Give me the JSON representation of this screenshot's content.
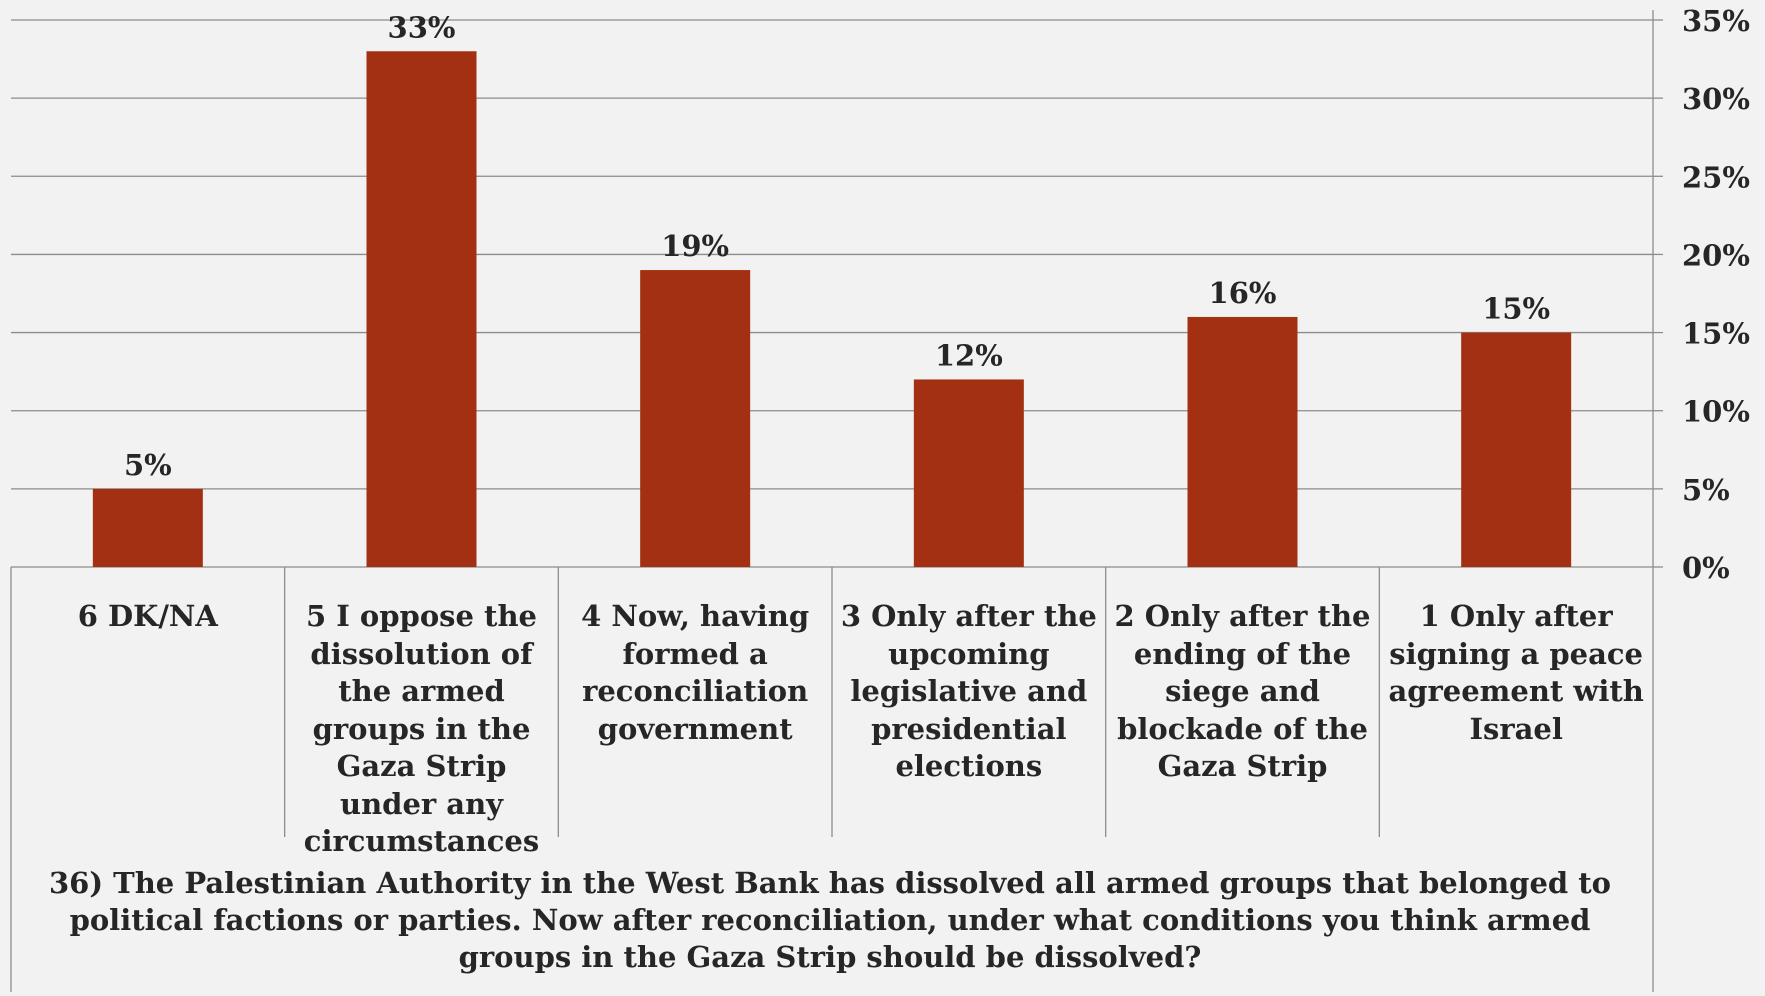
{
  "chart_data": {
    "type": "bar",
    "title": "36) The Palestinian Authority in the West Bank has dissolved all armed groups  that belonged to political factions or parties. Now after reconciliation, under what conditions you think armed groups in the Gaza Strip should be dissolved?",
    "categories": [
      "6 DK/NA",
      "5 I oppose the dissolution of the armed groups in the Gaza Strip under any circumstances",
      "4 Now, having formed a reconciliation government",
      "3 Only after the upcoming legislative and presidential elections",
      "2 Only after the ending of the siege and blockade of the Gaza Strip",
      "1 Only after signing a peace agreement with Israel"
    ],
    "values": [
      5,
      33,
      19,
      12,
      16,
      15
    ],
    "value_labels": [
      "5%",
      "33%",
      "19%",
      "12%",
      "16%",
      "15%"
    ],
    "ylim": [
      0,
      35
    ],
    "y_ticks": [
      0,
      5,
      10,
      15,
      20,
      25,
      30,
      35
    ],
    "y_tick_labels": [
      "0%",
      "5%",
      "10%",
      "15%",
      "20%",
      "25%",
      "30%",
      "35%"
    ],
    "y_axis_position": "right",
    "grid": true,
    "legend": "none",
    "bar_color": "#a33013",
    "gridline_color": "#8c8c8c",
    "background_color": "#f2f2f2"
  }
}
